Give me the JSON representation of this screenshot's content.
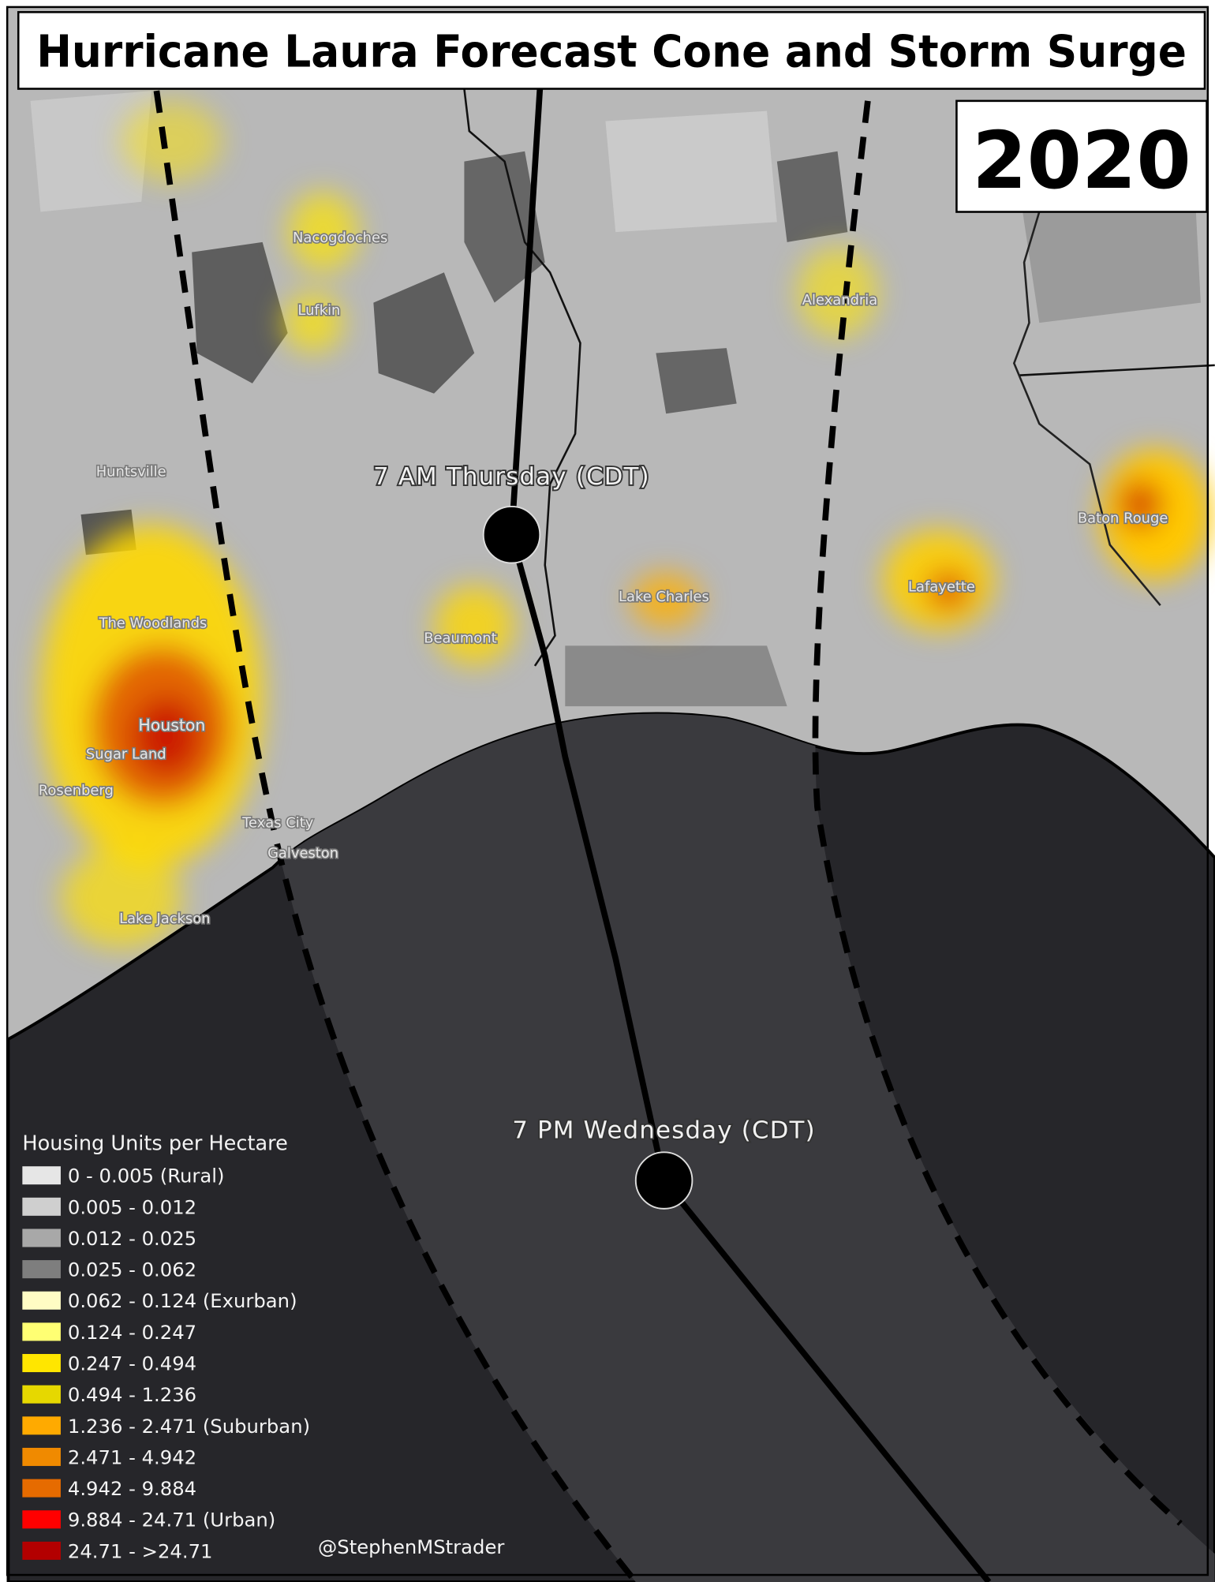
{
  "header": {
    "title": "Hurricane Laura Forecast Cone and Storm Surge",
    "year": "2020"
  },
  "markers": [
    {
      "label": "7 AM Thursday (CDT)"
    },
    {
      "label": "7 PM Wednesday (CDT)"
    }
  ],
  "cities": [
    "Nacogdoches",
    "Lufkin",
    "Huntsville",
    "The Woodlands",
    "Houston",
    "Sugar Land",
    "Rosenberg",
    "Texas City",
    "Galveston",
    "Lake Jackson",
    "Beaumont",
    "Lake Charles",
    "Alexandria",
    "Lafayette",
    "Baton Rouge"
  ],
  "legend": {
    "title": "Housing Units per Hectare",
    "items": [
      {
        "label": "0 - 0.005 (Rural)",
        "color": "#e6e6e6"
      },
      {
        "label": "0.005 - 0.012",
        "color": "#cfcfcf"
      },
      {
        "label": "0.012 - 0.025",
        "color": "#a8a8a8"
      },
      {
        "label": "0.025 - 0.062",
        "color": "#7e7e7e"
      },
      {
        "label": "0.062 - 0.124 (Exurban)",
        "color": "#fffcc4"
      },
      {
        "label": "0.124 - 0.247",
        "color": "#ffff73"
      },
      {
        "label": "0.247 - 0.494",
        "color": "#ffe600"
      },
      {
        "label": "0.494 - 1.236",
        "color": "#e6d800"
      },
      {
        "label": "1.236 - 2.471 (Suburban)",
        "color": "#ffaa00"
      },
      {
        "label": "2.471 - 4.942",
        "color": "#f08a00"
      },
      {
        "label": "4.942 - 9.884",
        "color": "#e66b00"
      },
      {
        "label": "9.884 - 24.71 (Urban)",
        "color": "#ff0000"
      },
      {
        "label": "24.71 - >24.71",
        "color": "#b30000"
      }
    ]
  },
  "credit": "@StephenMStrader"
}
